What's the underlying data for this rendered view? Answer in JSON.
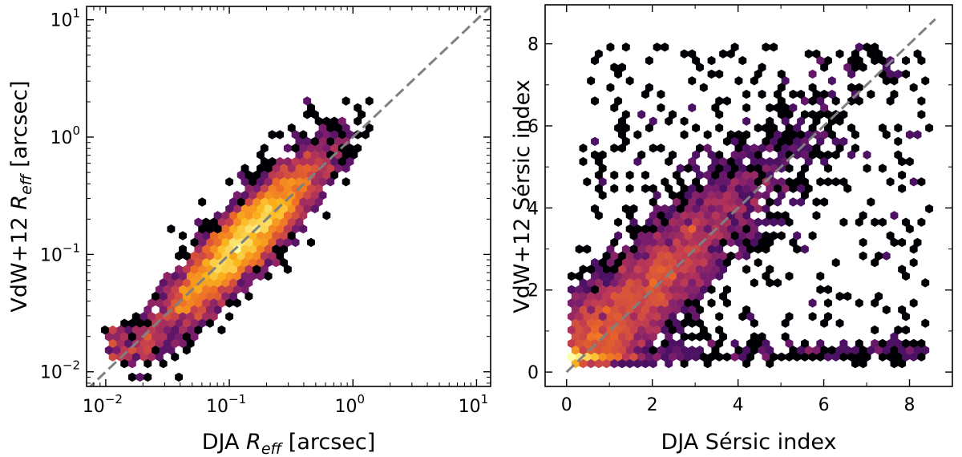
{
  "chart_data": [
    {
      "type": "hexbin",
      "x_scale": "log",
      "y_scale": "log",
      "xlim": [
        0.007,
        13
      ],
      "ylim": [
        0.0075,
        13
      ],
      "xlabel_prefix": "DJA ",
      "xlabel_symbol": "R",
      "xlabel_subscript": "eff",
      "xlabel_suffix": " [arcsec]",
      "ylabel_prefix": "VdW+12 ",
      "ylabel_symbol": "R",
      "ylabel_subscript": "eff",
      "ylabel_suffix": " [arcsec]",
      "ticks": [
        {
          "value": 0.01,
          "base": "10",
          "exp": "−2"
        },
        {
          "value": 0.1,
          "base": "10",
          "exp": "−1"
        },
        {
          "value": 1,
          "base": "10",
          "exp": "0"
        },
        {
          "value": 10,
          "base": "10",
          "exp": "1"
        }
      ],
      "reference_line": {
        "style": "dashed",
        "color": "#808080",
        "from": [
          0.007,
          0.007
        ],
        "to": [
          13,
          13
        ]
      },
      "trend": {
        "relation": "one-to-one",
        "density_peak": [
          0.13,
          0.13
        ],
        "scatter_dex": 0.16
      },
      "colormap": [
        "#000004",
        "#320a5e",
        "#781c6d",
        "#bc3754",
        "#ed6925",
        "#fbb61a",
        "#fcffa4"
      ]
    },
    {
      "type": "hexbin",
      "x_scale": "linear",
      "y_scale": "linear",
      "xlim": [
        -0.5,
        9.0
      ],
      "ylim": [
        -0.35,
        8.95
      ],
      "xlabel": "DJA Sérsic index",
      "ylabel": "VdW+12 Sérsic index",
      "xticks": [
        0,
        2,
        4,
        6,
        8
      ],
      "yticks": [
        0,
        2,
        4,
        6,
        8
      ],
      "reference_line": {
        "style": "dashed",
        "color": "#808080",
        "from": [
          0,
          0
        ],
        "to": [
          8.6,
          8.6
        ]
      },
      "trend": {
        "relation": "one-to-one",
        "density_peak": [
          1.2,
          1.3
        ],
        "scatter": 1.1
      },
      "colormap": [
        "#000004",
        "#320a5e",
        "#781c6d",
        "#bc3754",
        "#ed6925",
        "#fbb61a",
        "#fcffa4"
      ]
    }
  ]
}
